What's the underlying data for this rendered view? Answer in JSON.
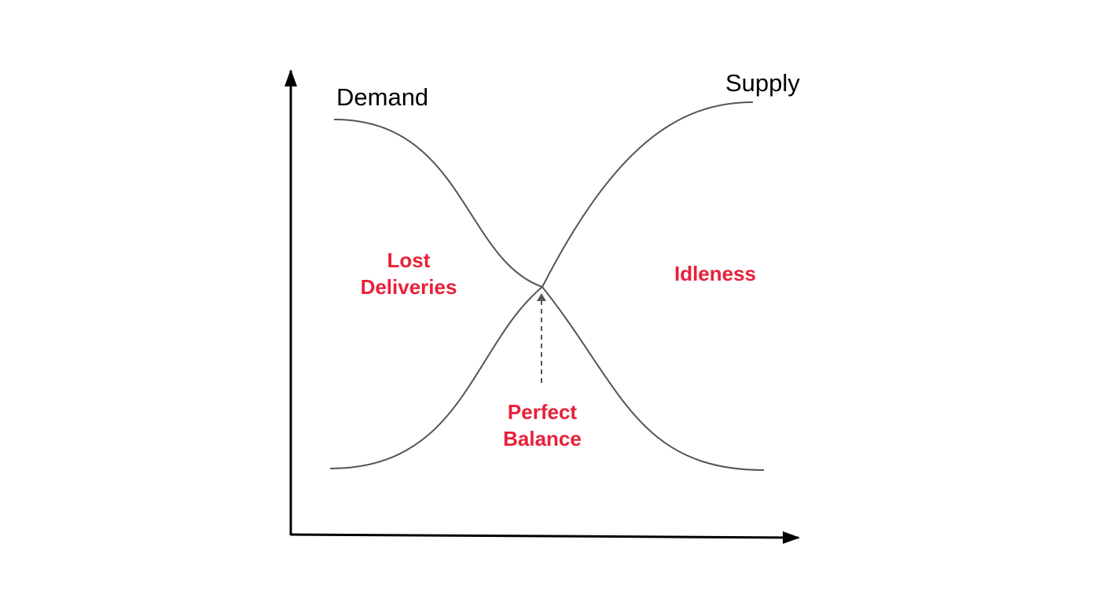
{
  "diagram": {
    "curves": {
      "demand_label": "Demand",
      "supply_label": "Supply"
    },
    "regions": {
      "left_line1": "Lost",
      "left_line2": "Deliveries",
      "right": "Idleness",
      "balance_line1": "Perfect",
      "balance_line2": "Balance"
    },
    "colors": {
      "axis": "#000000",
      "curve": "#555555",
      "region_text": "#e8203a",
      "arrow": "#555555"
    }
  }
}
